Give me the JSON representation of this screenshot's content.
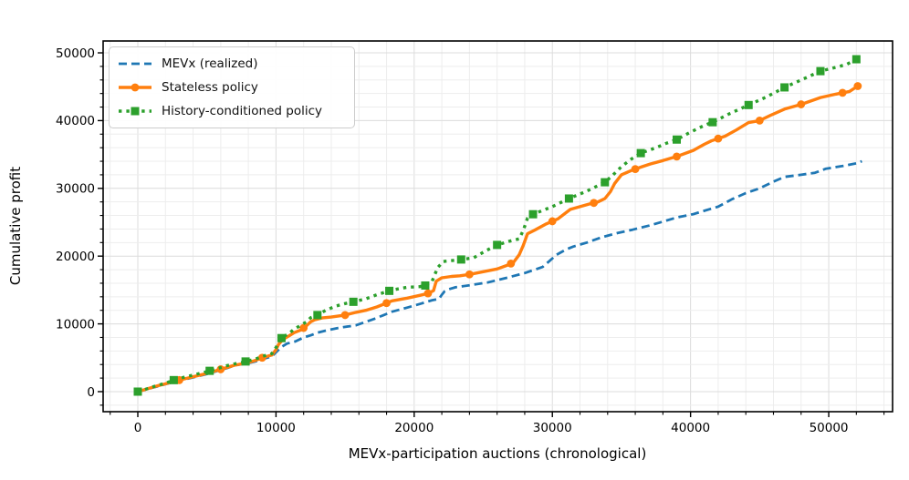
{
  "figure": {
    "background": "#ffffff"
  },
  "chart_data": {
    "type": "line",
    "title": "",
    "xlabel": "MEVx-participation auctions (chronological)",
    "ylabel": "Cumulative profit",
    "xlim": [
      -2510,
      54620
    ],
    "ylim": [
      -2960,
      51750
    ],
    "xticks": [
      0,
      10000,
      20000,
      30000,
      40000,
      50000
    ],
    "yticks": [
      0,
      10000,
      20000,
      30000,
      40000,
      50000
    ],
    "minor_tick_step": 2000,
    "grid": {
      "on": true,
      "major_color": "#dcdcdc",
      "minor_color": "#ededed"
    },
    "legend": {
      "position": "upper-left",
      "border_color": "#cccccc",
      "background": "#ffffff"
    },
    "series": [
      {
        "name": "MEVx (realized)",
        "color": "#1f77b4",
        "line_style": "dashed",
        "line_width": 2.8,
        "marker": "none",
        "points": [
          [
            0,
            0
          ],
          [
            500,
            250
          ],
          [
            1000,
            550
          ],
          [
            1500,
            800
          ],
          [
            2000,
            1100
          ],
          [
            2500,
            1350
          ],
          [
            3000,
            1600
          ],
          [
            3500,
            1850
          ],
          [
            4000,
            2100
          ],
          [
            4500,
            2350
          ],
          [
            5000,
            2600
          ],
          [
            5500,
            2900
          ],
          [
            6000,
            3200
          ],
          [
            6500,
            3500
          ],
          [
            7000,
            3850
          ],
          [
            7500,
            4050
          ],
          [
            8000,
            4200
          ],
          [
            8500,
            4450
          ],
          [
            9000,
            4800
          ],
          [
            9700,
            5200
          ],
          [
            10000,
            5800
          ],
          [
            10400,
            6600
          ],
          [
            10800,
            7100
          ],
          [
            11400,
            7400
          ],
          [
            12000,
            8000
          ],
          [
            12500,
            8300
          ],
          [
            13000,
            8700
          ],
          [
            13600,
            9000
          ],
          [
            14500,
            9400
          ],
          [
            15800,
            9800
          ],
          [
            16500,
            10300
          ],
          [
            17200,
            10800
          ],
          [
            17800,
            11300
          ],
          [
            18400,
            11800
          ],
          [
            19500,
            12400
          ],
          [
            20500,
            13000
          ],
          [
            21300,
            13500
          ],
          [
            21800,
            13700
          ],
          [
            22000,
            14300
          ],
          [
            22200,
            14800
          ],
          [
            22500,
            15100
          ],
          [
            23000,
            15400
          ],
          [
            24000,
            15700
          ],
          [
            25300,
            16100
          ],
          [
            26700,
            16800
          ],
          [
            28000,
            17500
          ],
          [
            29300,
            18400
          ],
          [
            29800,
            19300
          ],
          [
            30300,
            20200
          ],
          [
            31000,
            21000
          ],
          [
            31500,
            21400
          ],
          [
            32500,
            22000
          ],
          [
            33600,
            22800
          ],
          [
            34700,
            23400
          ],
          [
            35800,
            23900
          ],
          [
            37000,
            24500
          ],
          [
            38000,
            25100
          ],
          [
            39000,
            25700
          ],
          [
            40200,
            26200
          ],
          [
            41000,
            26700
          ],
          [
            42000,
            27300
          ],
          [
            43000,
            28400
          ],
          [
            44000,
            29300
          ],
          [
            45000,
            30000
          ],
          [
            46000,
            31000
          ],
          [
            46800,
            31700
          ],
          [
            48000,
            32000
          ],
          [
            49000,
            32300
          ],
          [
            49800,
            32900
          ],
          [
            51000,
            33300
          ],
          [
            52000,
            33700
          ],
          [
            52400,
            34000
          ]
        ]
      },
      {
        "name": "Stateless policy",
        "color": "#ff7f0e",
        "line_style": "solid",
        "line_width": 3.4,
        "marker": "circle",
        "marker_every_x": 3000,
        "end_marker": true,
        "points": [
          [
            0,
            0
          ],
          [
            500,
            300
          ],
          [
            1000,
            600
          ],
          [
            1500,
            900
          ],
          [
            2000,
            1150
          ],
          [
            2500,
            1450
          ],
          [
            3000,
            1700
          ],
          [
            3500,
            1950
          ],
          [
            4000,
            2200
          ],
          [
            4500,
            2450
          ],
          [
            5000,
            2700
          ],
          [
            5500,
            3000
          ],
          [
            6000,
            3300
          ],
          [
            6500,
            3600
          ],
          [
            7000,
            3900
          ],
          [
            7500,
            4100
          ],
          [
            8000,
            4300
          ],
          [
            8500,
            4600
          ],
          [
            9000,
            5000
          ],
          [
            9700,
            5400
          ],
          [
            10000,
            6200
          ],
          [
            10200,
            7000
          ],
          [
            10500,
            7700
          ],
          [
            11000,
            8300
          ],
          [
            11300,
            8700
          ],
          [
            11800,
            9100
          ],
          [
            12200,
            9700
          ],
          [
            12500,
            10300
          ],
          [
            12800,
            10600
          ],
          [
            13400,
            10900
          ],
          [
            14000,
            11000
          ],
          [
            15000,
            11300
          ],
          [
            15800,
            11700
          ],
          [
            16500,
            12000
          ],
          [
            17300,
            12500
          ],
          [
            18400,
            13400
          ],
          [
            19500,
            13800
          ],
          [
            20400,
            14200
          ],
          [
            21000,
            14500
          ],
          [
            21400,
            14900
          ],
          [
            21600,
            16300
          ],
          [
            22000,
            16800
          ],
          [
            22700,
            17000
          ],
          [
            23300,
            17100
          ],
          [
            24000,
            17300
          ],
          [
            25000,
            17700
          ],
          [
            26000,
            18100
          ],
          [
            26800,
            18700
          ],
          [
            27200,
            19100
          ],
          [
            27600,
            20200
          ],
          [
            27900,
            21600
          ],
          [
            28200,
            23300
          ],
          [
            28700,
            23800
          ],
          [
            29500,
            24700
          ],
          [
            30400,
            25500
          ],
          [
            31300,
            26900
          ],
          [
            32000,
            27300
          ],
          [
            32700,
            27700
          ],
          [
            33300,
            28000
          ],
          [
            33800,
            28500
          ],
          [
            34200,
            29500
          ],
          [
            34500,
            30700
          ],
          [
            35000,
            32000
          ],
          [
            35800,
            32700
          ],
          [
            36500,
            33200
          ],
          [
            37100,
            33600
          ],
          [
            38000,
            34100
          ],
          [
            39000,
            34700
          ],
          [
            40200,
            35600
          ],
          [
            41000,
            36500
          ],
          [
            41500,
            37000
          ],
          [
            42500,
            37700
          ],
          [
            43300,
            38600
          ],
          [
            44200,
            39700
          ],
          [
            45000,
            40000
          ],
          [
            45800,
            40800
          ],
          [
            46800,
            41700
          ],
          [
            48000,
            42400
          ],
          [
            49400,
            43400
          ],
          [
            50500,
            43900
          ],
          [
            51500,
            44300
          ],
          [
            52100,
            45100
          ]
        ]
      },
      {
        "name": "History-conditioned policy",
        "color": "#2ca02c",
        "line_style": "dotted",
        "line_width": 3.4,
        "marker": "square",
        "marker_every_x": 2600,
        "points": [
          [
            0,
            0
          ],
          [
            500,
            300
          ],
          [
            1000,
            650
          ],
          [
            1500,
            950
          ],
          [
            2000,
            1250
          ],
          [
            2600,
            1700
          ],
          [
            3000,
            1950
          ],
          [
            3500,
            2200
          ],
          [
            4000,
            2450
          ],
          [
            4500,
            2700
          ],
          [
            5000,
            2950
          ],
          [
            5500,
            3250
          ],
          [
            6000,
            3550
          ],
          [
            6500,
            3850
          ],
          [
            7000,
            4100
          ],
          [
            7500,
            4300
          ],
          [
            7900,
            4500
          ],
          [
            8500,
            4800
          ],
          [
            9000,
            5200
          ],
          [
            9700,
            5600
          ],
          [
            10000,
            6500
          ],
          [
            10200,
            7300
          ],
          [
            10400,
            7900
          ],
          [
            11000,
            8700
          ],
          [
            11300,
            9200
          ],
          [
            11800,
            9800
          ],
          [
            12200,
            10300
          ],
          [
            12500,
            10900
          ],
          [
            13000,
            11300
          ],
          [
            13600,
            12000
          ],
          [
            14300,
            12600
          ],
          [
            15000,
            13000
          ],
          [
            15700,
            13300
          ],
          [
            16500,
            13700
          ],
          [
            17300,
            14300
          ],
          [
            18400,
            15000
          ],
          [
            19500,
            15400
          ],
          [
            20400,
            15500
          ],
          [
            20900,
            15700
          ],
          [
            21300,
            16300
          ],
          [
            21500,
            17300
          ],
          [
            21700,
            18300
          ],
          [
            22100,
            19200
          ],
          [
            23400,
            19500
          ],
          [
            24300,
            19750
          ],
          [
            25200,
            20800
          ],
          [
            26000,
            21650
          ],
          [
            26900,
            22200
          ],
          [
            27600,
            22550
          ],
          [
            27900,
            23800
          ],
          [
            28200,
            25600
          ],
          [
            28500,
            26100
          ],
          [
            29000,
            26500
          ],
          [
            30000,
            27300
          ],
          [
            31200,
            28500
          ],
          [
            32500,
            29600
          ],
          [
            33800,
            30900
          ],
          [
            34400,
            32000
          ],
          [
            35000,
            33200
          ],
          [
            35700,
            34300
          ],
          [
            36400,
            35200
          ],
          [
            37500,
            36000
          ],
          [
            38300,
            36700
          ],
          [
            39000,
            37200
          ],
          [
            40000,
            38300
          ],
          [
            41000,
            39300
          ],
          [
            41650,
            39800
          ],
          [
            42800,
            41000
          ],
          [
            44200,
            42300
          ],
          [
            45500,
            43500
          ],
          [
            46800,
            44900
          ],
          [
            48000,
            46000
          ],
          [
            49400,
            47300
          ],
          [
            50600,
            47900
          ],
          [
            51300,
            48300
          ],
          [
            52040,
            49100
          ]
        ]
      }
    ]
  }
}
